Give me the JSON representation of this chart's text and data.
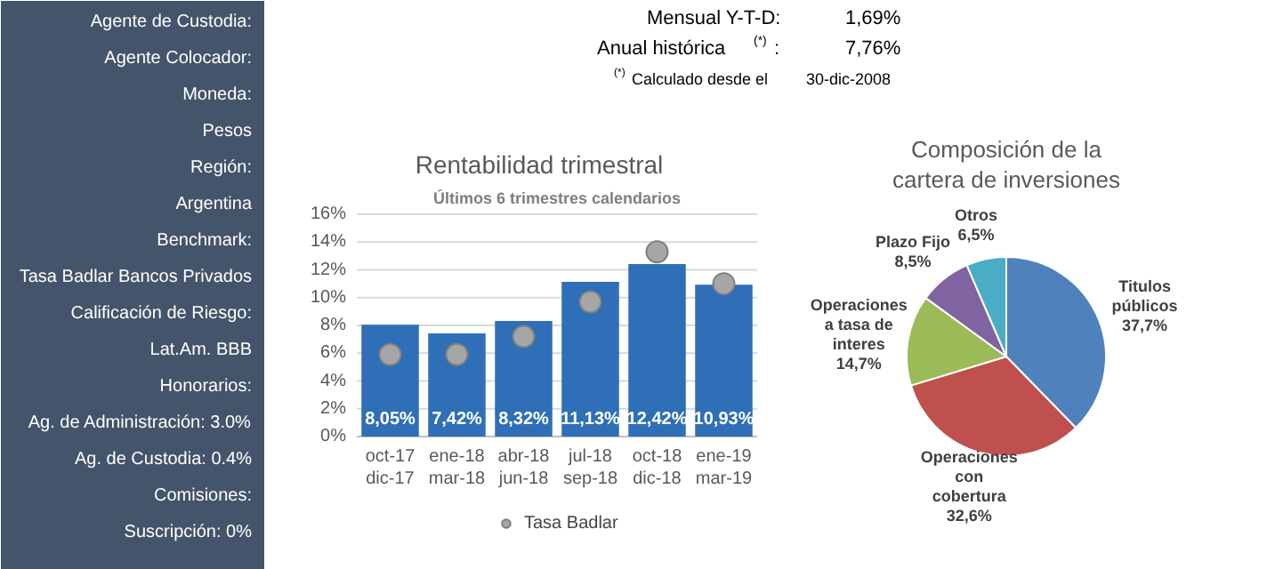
{
  "chart_data": [
    {
      "type": "other",
      "color": "#44546a",
      "annotations": [
        "Agente de Custodia:",
        "Agente Colocador:",
        "Moneda:",
        "Pesos",
        "Región:",
        "Argentina",
        "Benchmark:",
        "Tasa Badlar Bancos Privados",
        "Calificación de Riesgo:",
        "Lat.Am. BBB",
        "Honorarios:",
        "Ag. de Administración: 3.0%",
        "Ag. de Custodia: 0.4%",
        "Comisiones:",
        "Suscripción: 0%"
      ]
    },
    {
      "type": "other",
      "annotations": [
        "Mensual Y-T-D:",
        "1,69%",
        "Anual histórica $^{(*)}$:",
        "7,76%",
        "$^{(*)}$ Calculado desde el",
        "30-dic-2008"
      ]
    },
    {
      "type": "bar",
      "title": "Rentabilidad trimestral",
      "subtitle": "Últimos 6 trimestres calendarios",
      "categories": [
        "oct-17\ndic-17",
        "ene-18\nmar-18",
        "abr-18\njun-18",
        "jul-18\nsep-18",
        "oct-18\ndic-18",
        "ene-19\nmar-19"
      ],
      "series": [
        {
          "type": "bar",
          "color": "#2f6fb7",
          "values": [
            8.05,
            7.42,
            8.32,
            11.13,
            12.42,
            10.93
          ],
          "value_labels": [
            "8,05%",
            "7,42%",
            "8,32%",
            "11,13%",
            "12,42%",
            "10,93%"
          ]
        },
        {
          "type": "scatter",
          "name": "Tasa Badlar",
          "color": "#a6a6a6",
          "values": [
            5.9,
            5.9,
            7.2,
            9.7,
            13.3,
            11.0
          ]
        }
      ],
      "ylim": [
        0,
        16
      ],
      "yticks": [
        {
          "value": 0,
          "label": "0%"
        },
        {
          "value": 2,
          "label": "2%"
        },
        {
          "value": 4,
          "label": "4%"
        },
        {
          "value": 6,
          "label": "6%"
        },
        {
          "value": 8,
          "label": "8%"
        },
        {
          "value": 10,
          "label": "10%"
        },
        {
          "value": 12,
          "label": "12%"
        },
        {
          "value": 14,
          "label": "14%"
        },
        {
          "value": 16,
          "label": "16%"
        }
      ],
      "grid": "y",
      "legend": "bottom",
      "marker": "circle"
    },
    {
      "type": "pie",
      "title": "Composición de la\ncartera de inversiones",
      "categories": [
        "Titulos públicos",
        "Operaciones con cobertura",
        "Operaciones a tasa de interes",
        "Plazo Fijo",
        "Otros"
      ],
      "values": [
        37.7,
        32.6,
        14.7,
        8.5,
        6.5
      ],
      "value_labels": [
        "37,7%",
        "32,6%",
        "14,7%",
        "8,5%",
        "6,5%"
      ],
      "colors": [
        "#4f81bd",
        "#c0504d",
        "#9bbb59",
        "#8064a2",
        "#4bacc6"
      ]
    }
  ]
}
